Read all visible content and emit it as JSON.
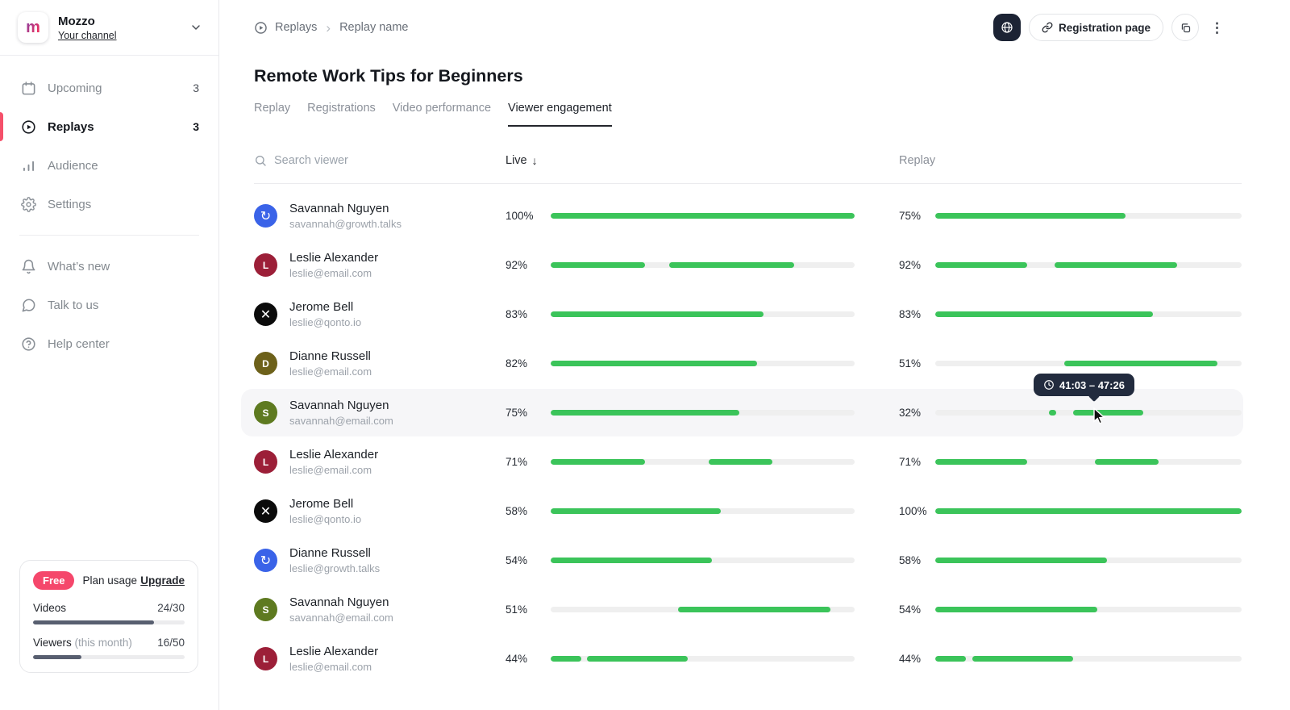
{
  "colors": {
    "green": "#3bc45a",
    "accent_red": "#f5476b",
    "tooltip_bg": "#222b3e",
    "plan_fill": "#585f70",
    "track_gray": "#efefef"
  },
  "icons": {
    "chevron-right": "›",
    "sort-down": "↓",
    "kebab": "⋮",
    "logo-growthtalks": "↻",
    "logo-qonto": "✕"
  },
  "sidebar": {
    "logo_letter": "m",
    "channel_name": "Mozzo",
    "channel_sub": "Your channel",
    "nav": [
      {
        "label": "Upcoming",
        "count": "3",
        "icon": "calendar-icon",
        "active": false
      },
      {
        "label": "Replays",
        "count": "3",
        "icon": "play-circle-icon",
        "active": true
      },
      {
        "label": "Audience",
        "count": "",
        "icon": "bar-chart-icon",
        "active": false
      },
      {
        "label": "Settings",
        "count": "",
        "icon": "gear-icon",
        "active": false
      }
    ],
    "secondary": [
      {
        "label": "What’s new",
        "icon": "bell-icon"
      },
      {
        "label": "Talk to us",
        "icon": "chat-icon"
      },
      {
        "label": "Help center",
        "icon": "help-circle-icon"
      }
    ],
    "plan": {
      "badge": "Free",
      "title": "Plan usage",
      "upgrade": "Upgrade",
      "meters": [
        {
          "label": "Videos",
          "note": "",
          "value": "24/30",
          "pct": 80
        },
        {
          "label": "Viewers",
          "note": "(this month)",
          "value": "16/50",
          "pct": 32
        }
      ]
    }
  },
  "header": {
    "breadcrumb": {
      "root": "Replays",
      "current": "Replay name"
    },
    "registration_label": "Registration page"
  },
  "main": {
    "title": "Remote Work Tips for Beginners",
    "tabs": [
      {
        "label": "Replay",
        "active": false
      },
      {
        "label": "Registrations",
        "active": false
      },
      {
        "label": "Video performance",
        "active": false
      },
      {
        "label": "Viewer engagement",
        "active": true
      }
    ],
    "table": {
      "search_placeholder": "Search viewer",
      "col_live": "Live",
      "col_replay": "Replay",
      "rows": [
        {
          "name": "Savannah Nguyen",
          "email": "savannah@growth.talks",
          "avatar": {
            "type": "logo",
            "logo": "growthtalks",
            "bg": "#3a63e8"
          },
          "live": {
            "pct": "100%",
            "segments": [
              [
                0,
                100
              ]
            ]
          },
          "replay": {
            "pct": "75%",
            "segments": [
              [
                0,
                62
              ]
            ]
          }
        },
        {
          "name": "Leslie Alexander",
          "email": "leslie@email.com",
          "avatar": {
            "type": "initial",
            "glyph": "L",
            "bg": "#9c1f38"
          },
          "live": {
            "pct": "92%",
            "segments": [
              [
                0,
                31
              ],
              [
                39,
                41
              ]
            ]
          },
          "replay": {
            "pct": "92%",
            "segments": [
              [
                0,
                30
              ],
              [
                39,
                40
              ]
            ]
          }
        },
        {
          "name": "Jerome Bell",
          "email": "leslie@qonto.io",
          "avatar": {
            "type": "logo",
            "logo": "qonto",
            "bg": "#0b0b0b"
          },
          "live": {
            "pct": "83%",
            "segments": [
              [
                0,
                70
              ]
            ]
          },
          "replay": {
            "pct": "83%",
            "segments": [
              [
                0,
                71
              ]
            ]
          }
        },
        {
          "name": "Dianne Russell",
          "email": "leslie@email.com",
          "avatar": {
            "type": "initial",
            "glyph": "D",
            "bg": "#6d611a"
          },
          "live": {
            "pct": "82%",
            "segments": [
              [
                0,
                68
              ]
            ]
          },
          "replay": {
            "pct": "51%",
            "segments": [
              [
                42,
                50
              ]
            ]
          }
        },
        {
          "name": "Savannah Nguyen",
          "email": "savannah@email.com",
          "avatar": {
            "type": "initial",
            "glyph": "S",
            "bg": "#5e7a20"
          },
          "live": {
            "pct": "75%",
            "segments": [
              [
                0,
                62
              ]
            ]
          },
          "replay": {
            "pct": "32%",
            "segments": [
              [
                37,
                2.5
              ],
              [
                45,
                23
              ]
            ]
          },
          "highlighted": true
        },
        {
          "name": "Leslie Alexander",
          "email": "leslie@email.com",
          "avatar": {
            "type": "initial",
            "glyph": "L",
            "bg": "#9c1f38"
          },
          "live": {
            "pct": "71%",
            "segments": [
              [
                0,
                31
              ],
              [
                52,
                21
              ]
            ]
          },
          "replay": {
            "pct": "71%",
            "segments": [
              [
                0,
                30
              ],
              [
                52,
                21
              ]
            ]
          }
        },
        {
          "name": "Jerome Bell",
          "email": "leslie@qonto.io",
          "avatar": {
            "type": "logo",
            "logo": "qonto",
            "bg": "#0b0b0b"
          },
          "live": {
            "pct": "58%",
            "segments": [
              [
                0,
                56
              ]
            ]
          },
          "replay": {
            "pct": "100%",
            "segments": [
              [
                0,
                100
              ]
            ]
          }
        },
        {
          "name": "Dianne Russell",
          "email": "leslie@growth.talks",
          "avatar": {
            "type": "logo",
            "logo": "growthtalks",
            "bg": "#3a63e8"
          },
          "live": {
            "pct": "54%",
            "segments": [
              [
                0,
                53
              ]
            ]
          },
          "replay": {
            "pct": "58%",
            "segments": [
              [
                0,
                56
              ]
            ]
          }
        },
        {
          "name": "Savannah Nguyen",
          "email": "savannah@email.com",
          "avatar": {
            "type": "initial",
            "glyph": "S",
            "bg": "#5e7a20"
          },
          "live": {
            "pct": "51%",
            "segments": [
              [
                42,
                50
              ]
            ]
          },
          "replay": {
            "pct": "54%",
            "segments": [
              [
                0,
                53
              ]
            ]
          }
        },
        {
          "name": "Leslie Alexander",
          "email": "leslie@email.com",
          "avatar": {
            "type": "initial",
            "glyph": "L",
            "bg": "#9c1f38"
          },
          "live": {
            "pct": "44%",
            "segments": [
              [
                0,
                10
              ],
              [
                12,
                33
              ]
            ]
          },
          "replay": {
            "pct": "44%",
            "segments": [
              [
                0,
                10
              ],
              [
                12,
                33
              ]
            ]
          }
        }
      ]
    },
    "tooltip": {
      "time_range": "41:03 – 47:26"
    }
  }
}
